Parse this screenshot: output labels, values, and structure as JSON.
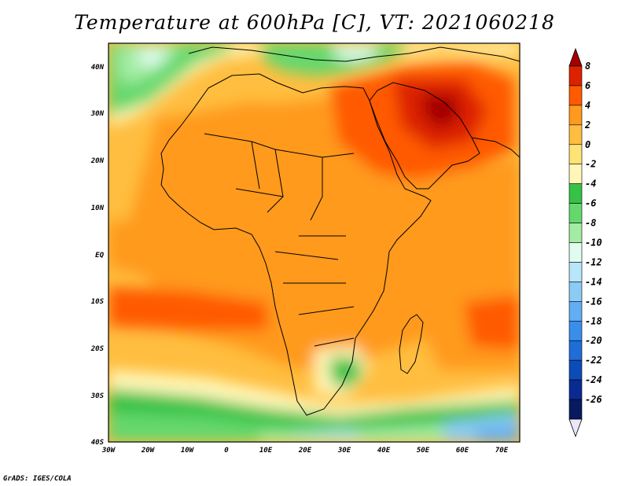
{
  "title": "Temperature at 600hPa [C], VT: 2021060218",
  "credit": "GrADS: IGES/COLA",
  "map": {
    "region": "Africa and Arabian Peninsula",
    "variable": "Temperature at 600hPa",
    "units": "C",
    "valid_time": "2021060218",
    "lon_range": [
      -30,
      75
    ],
    "lat_range": [
      -40,
      45
    ],
    "lon_ticks": [
      "30W",
      "20W",
      "10W",
      "0",
      "10E",
      "20E",
      "30E",
      "40E",
      "50E",
      "60E",
      "70E"
    ],
    "lat_ticks": [
      "40N",
      "30N",
      "20N",
      "10N",
      "EQ",
      "10S",
      "20S",
      "30S",
      "40S"
    ]
  },
  "colorbar": {
    "labels": [
      "8",
      "6",
      "4",
      "2",
      "0",
      "-2",
      "-4",
      "-6",
      "-8",
      "-10",
      "-12",
      "-14",
      "-16",
      "-18",
      "-20",
      "-22",
      "-24",
      "-26"
    ],
    "colors": [
      "#a50000",
      "#dd2200",
      "#ff5a00",
      "#ff9a1e",
      "#ffbe40",
      "#ffe377",
      "#fff6b8",
      "#36c247",
      "#65d86d",
      "#a3eca3",
      "#e0fbef",
      "#b8e5f9",
      "#8ccbf5",
      "#62aef2",
      "#3a8eeb",
      "#1f6dd8",
      "#0c4cb8",
      "#0a2a93",
      "#081a5f",
      "#e8e8f8"
    ]
  }
}
